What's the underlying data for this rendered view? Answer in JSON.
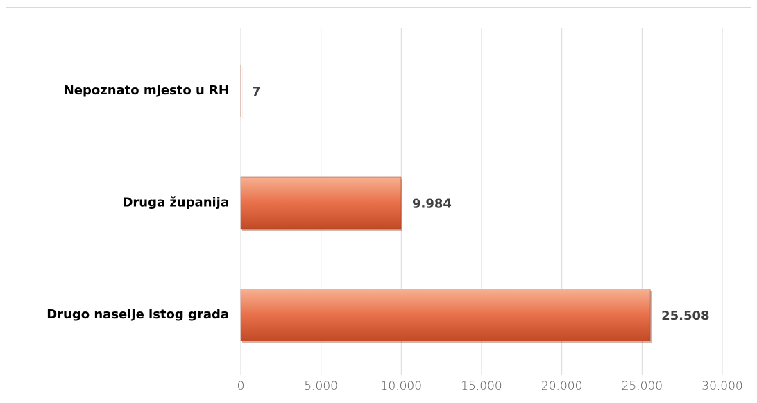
{
  "chart_data": {
    "type": "bar",
    "orientation": "horizontal",
    "categories": [
      "Nepoznato mjesto u RH",
      "Druga županija",
      "Drugo naselje istog grada"
    ],
    "values": [
      7,
      9984,
      25508
    ],
    "value_labels": [
      "7",
      "9.984",
      "25.508"
    ],
    "color": "#e0673f",
    "xlim": [
      0,
      30000
    ],
    "xticks": [
      0,
      {
        "value": 5000,
        "label": "5.000"
      },
      {
        "value": 10000,
        "label": "10.000"
      },
      {
        "value": 15000,
        "label": "15.000"
      },
      {
        "value": 20000,
        "label": "20.000"
      },
      {
        "value": 25000,
        "label": "25.000"
      },
      {
        "value": 30000,
        "label": "30.000"
      }
    ],
    "grid": true
  }
}
